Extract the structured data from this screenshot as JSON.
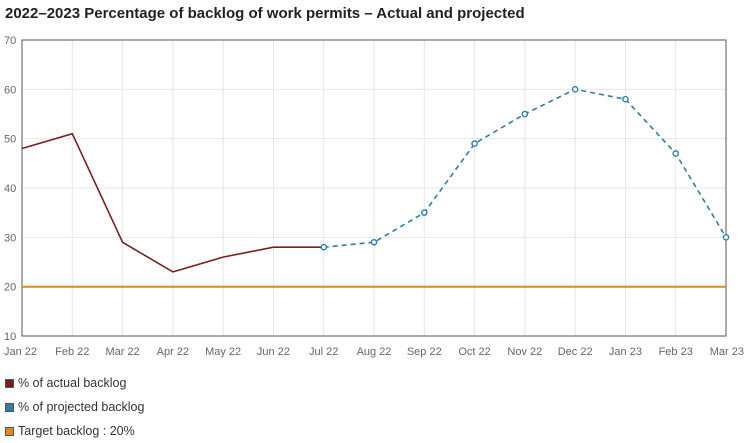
{
  "chart_data": {
    "type": "line",
    "title": "2022–2023 Percentage of backlog of work permits – Actual and projected",
    "categories": [
      "Jan 22",
      "Feb 22",
      "Mar 22",
      "Apr 22",
      "May 22",
      "Jun 22",
      "Jul 22",
      "Aug 22",
      "Sep 22",
      "Oct 22",
      "Nov 22",
      "Dec 22",
      "Jan 23",
      "Feb 23",
      "Mar 23"
    ],
    "ylim": [
      10,
      70
    ],
    "yticks": [
      10,
      20,
      30,
      40,
      50,
      60,
      70
    ],
    "grid": true,
    "series": [
      {
        "name": "% of actual backlog",
        "style": "solid",
        "markers": false,
        "color": "#7a1f1f",
        "values": [
          48,
          51,
          29,
          23,
          26,
          28,
          28,
          null,
          null,
          null,
          null,
          null,
          null,
          null,
          null
        ]
      },
      {
        "name": "% of projected backlog",
        "style": "dashed",
        "markers": true,
        "color": "#2e7ea0",
        "values": [
          null,
          null,
          null,
          null,
          null,
          null,
          28,
          29,
          35,
          49,
          55,
          60,
          58,
          47,
          30
        ]
      },
      {
        "name": "Target backlog : 20%",
        "style": "solid",
        "markers": false,
        "color": "#e08a1e",
        "values": [
          20,
          20,
          20,
          20,
          20,
          20,
          20,
          20,
          20,
          20,
          20,
          20,
          20,
          20,
          20
        ]
      }
    ]
  }
}
